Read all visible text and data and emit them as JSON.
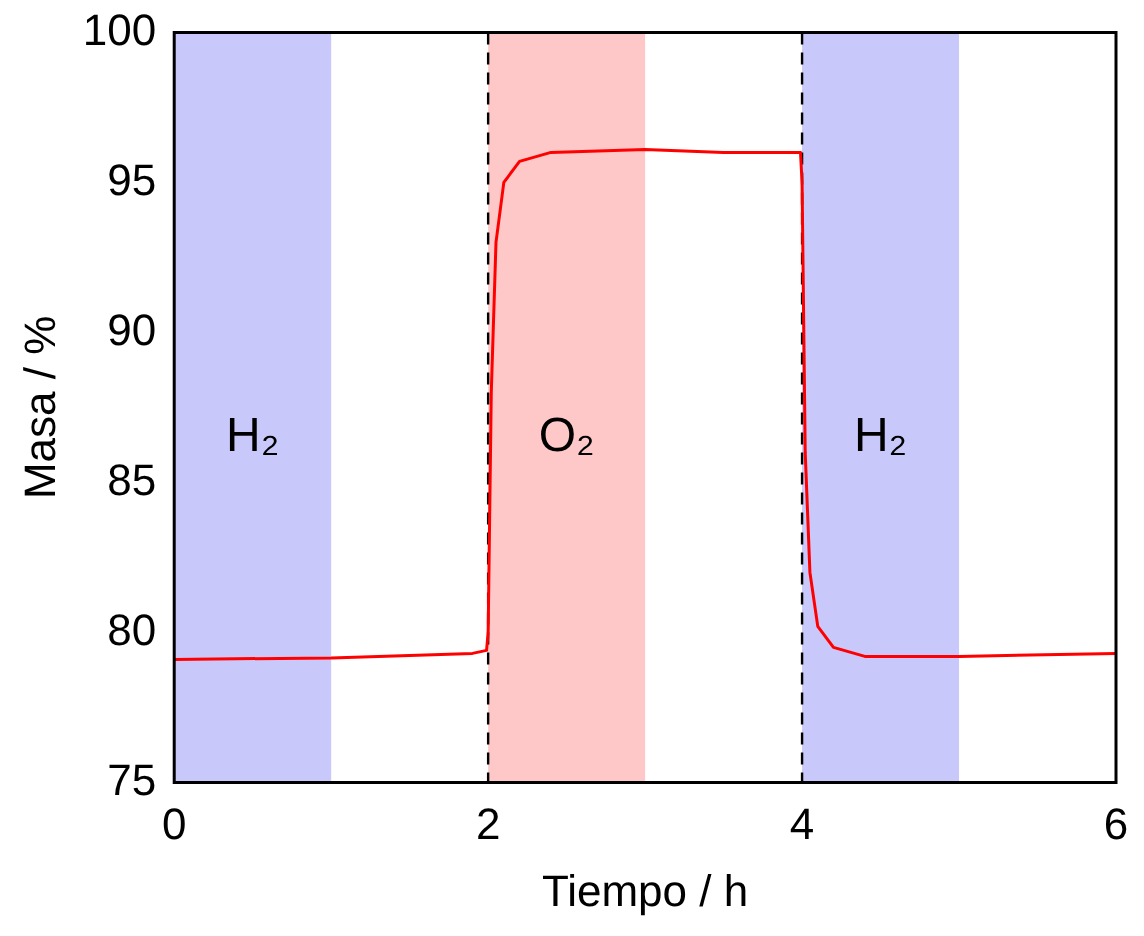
{
  "chart_data": {
    "type": "line",
    "xlabel": "Tiempo / h",
    "ylabel": "Masa / %",
    "x": [
      0,
      1,
      1.9,
      1.99,
      2.0,
      2.02,
      2.05,
      2.1,
      2.2,
      2.4,
      3,
      3.5,
      3.99,
      4.0,
      4.02,
      4.05,
      4.1,
      4.2,
      4.4,
      5,
      6
    ],
    "series": [
      {
        "color": "#ff0000",
        "values": [
          79.1,
          79.15,
          79.3,
          79.4,
          80,
          88,
          93,
          95,
          95.7,
          96,
          96.1,
          96.0,
          96.0,
          95,
          86,
          82,
          80.2,
          79.5,
          79.2,
          79.2,
          79.3
        ]
      }
    ],
    "xlim": [
      0,
      6
    ],
    "xticks": [
      0,
      2,
      4,
      6
    ],
    "ylim": [
      75,
      100
    ],
    "yticks": [
      75,
      80,
      85,
      90,
      95,
      100
    ],
    "grid": false,
    "legend": false,
    "marker": "none",
    "line_style": "solid",
    "bands": [
      {
        "axis": "x",
        "from": 0,
        "to": 1,
        "label": "H₂",
        "color": "#c8c8fa"
      },
      {
        "axis": "x",
        "from": 2,
        "to": 3,
        "label": "O₂",
        "color": "#ffc8c8"
      },
      {
        "axis": "x",
        "from": 4,
        "to": 5,
        "label": "H₂",
        "color": "#c8c8fa"
      }
    ],
    "ref_lines": [
      {
        "axis": "x",
        "value": 2,
        "color": "#000000",
        "line_style": "dashed"
      },
      {
        "axis": "x",
        "value": 4,
        "color": "#000000",
        "line_style": "dashed"
      }
    ]
  }
}
